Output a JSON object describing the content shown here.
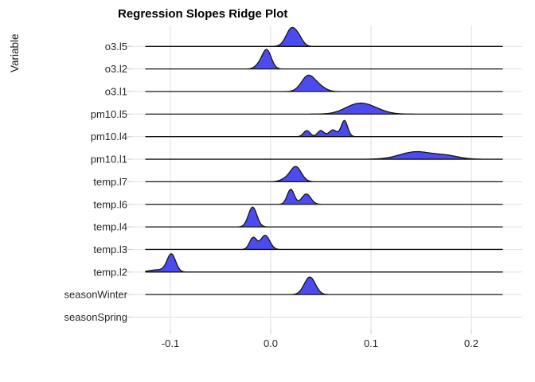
{
  "chart": {
    "title": "Regression Slopes Ridge Plot",
    "y_axis_title": "Variable"
  },
  "chart_data": {
    "type": "ridgeline",
    "title": "Regression Slopes Ridge Plot",
    "xlabel": "",
    "ylabel": "Variable",
    "xlim": [
      -0.138,
      0.251
    ],
    "density_domain": [
      -0.1246,
      0.231
    ],
    "grid": true,
    "legend": "none",
    "colors": {
      "ridge_fill": "#4b4bef",
      "ridge_stroke": "#151515",
      "grid_color": "#e4e4e4",
      "tick_color": "#d2d2d2",
      "text_color": "#262626",
      "background": "#ffffff"
    },
    "x_ticks": [
      {
        "value": -0.1,
        "label": "-0.1"
      },
      {
        "value": 0.0,
        "label": "0.0"
      },
      {
        "value": 0.1,
        "label": "0.1"
      },
      {
        "value": 0.2,
        "label": "0.2"
      }
    ],
    "rows": [
      {
        "label": "o3.l5",
        "peak": 0.021,
        "components": [
          {
            "mean": 0.021,
            "sd": 0.0055,
            "amp": 0.81
          },
          {
            "mean": 0.029,
            "sd": 0.004,
            "amp": 0.21
          }
        ]
      },
      {
        "label": "o3.l2",
        "peak": -0.004,
        "components": [
          {
            "mean": -0.004,
            "sd": 0.0045,
            "amp": 0.85
          },
          {
            "mean": -0.012,
            "sd": 0.004,
            "amp": 0.14
          }
        ]
      },
      {
        "label": "o3.l1",
        "peak": 0.038,
        "components": [
          {
            "mean": 0.037,
            "sd": 0.0065,
            "amp": 0.67
          },
          {
            "mean": 0.048,
            "sd": 0.0065,
            "amp": 0.21
          }
        ]
      },
      {
        "label": "pm10.l5",
        "peak": 0.089,
        "components": [
          {
            "mean": 0.087,
            "sd": 0.013,
            "amp": 0.42
          },
          {
            "mean": 0.103,
            "sd": 0.012,
            "amp": 0.14
          }
        ]
      },
      {
        "label": "pm10.l4",
        "peak": 0.073,
        "components": [
          {
            "mean": 0.036,
            "sd": 0.0032,
            "amp": 0.27
          },
          {
            "mean": 0.05,
            "sd": 0.0032,
            "amp": 0.27
          },
          {
            "mean": 0.062,
            "sd": 0.0038,
            "amp": 0.3
          },
          {
            "mean": 0.0735,
            "sd": 0.0032,
            "amp": 0.72
          }
        ]
      },
      {
        "label": "pm10.l1",
        "peak": 0.148,
        "components": [
          {
            "mean": 0.145,
            "sd": 0.016,
            "amp": 0.33
          },
          {
            "mean": 0.176,
            "sd": 0.012,
            "amp": 0.14
          }
        ]
      },
      {
        "label": "temp.l7",
        "peak": 0.025,
        "components": [
          {
            "mean": 0.025,
            "sd": 0.0055,
            "amp": 0.67
          },
          {
            "mean": 0.014,
            "sd": 0.005,
            "amp": 0.1
          }
        ]
      },
      {
        "label": "temp.l6",
        "peak": 0.02,
        "components": [
          {
            "mean": 0.02,
            "sd": 0.0035,
            "amp": 0.67
          },
          {
            "mean": 0.0355,
            "sd": 0.0045,
            "amp": 0.46
          }
        ]
      },
      {
        "label": "temp.l4",
        "peak": -0.018,
        "components": [
          {
            "mean": -0.018,
            "sd": 0.0042,
            "amp": 0.88
          }
        ]
      },
      {
        "label": "temp.l3",
        "peak": -0.006,
        "components": [
          {
            "mean": -0.0175,
            "sd": 0.0035,
            "amp": 0.53
          },
          {
            "mean": -0.0055,
            "sd": 0.0045,
            "amp": 0.63
          }
        ]
      },
      {
        "label": "temp.l2",
        "peak": -0.099,
        "components": [
          {
            "mean": -0.099,
            "sd": 0.0042,
            "amp": 0.78
          },
          {
            "mean": -0.112,
            "sd": 0.009,
            "amp": 0.1
          }
        ]
      },
      {
        "label": "seasonWinter",
        "peak": 0.039,
        "components": [
          {
            "mean": 0.039,
            "sd": 0.0055,
            "amp": 0.78
          }
        ]
      },
      {
        "label": "seasonSpring",
        "peak": null,
        "components": []
      }
    ]
  }
}
